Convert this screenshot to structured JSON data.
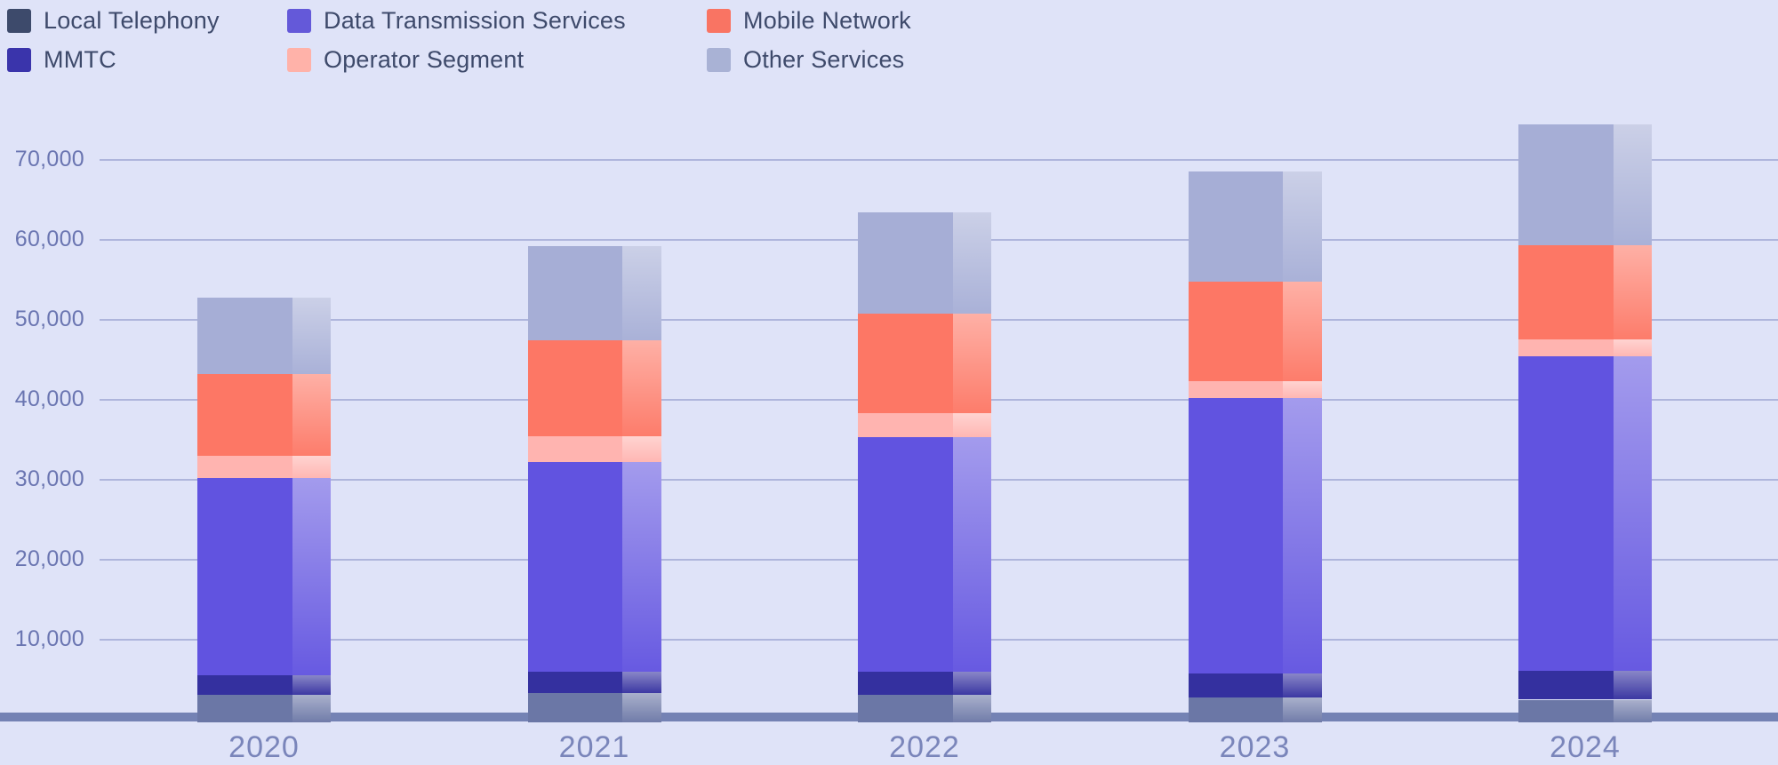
{
  "legend": {
    "order": [
      "Local Telephony",
      "Data Transmission Services",
      "Mobile Network",
      "MMTC",
      "Operator Segment",
      "Other Services"
    ],
    "swatch_colors": {
      "Local Telephony": "#3d4a6b",
      "Data Transmission Services": "#6459d9",
      "Mobile Network": "#f97463",
      "MMTC": "#3a34ab",
      "Operator Segment": "#ffb2a9",
      "Other Services": "#a9b2d5"
    }
  },
  "chart_data": {
    "type": "bar",
    "stacked": true,
    "categories": [
      "2020",
      "2021",
      "2022",
      "2023",
      "2024"
    ],
    "series": [
      {
        "name": "Local Telephony",
        "color": "#6b77a6",
        "values": [
          3100,
          3300,
          3100,
          2800,
          2500
        ]
      },
      {
        "name": "MMTC",
        "color": "#34309f",
        "values": [
          2500,
          2700,
          2900,
          3000,
          3600
        ]
      },
      {
        "name": "Data Transmission Services",
        "color": "#6153e0",
        "values": [
          24600,
          26200,
          29300,
          34400,
          39300
        ]
      },
      {
        "name": "Operator Segment",
        "color": "#ffb4b0",
        "values": [
          2800,
          3200,
          3000,
          2100,
          2200
        ]
      },
      {
        "name": "Mobile Network",
        "color": "#fd7765",
        "values": [
          10200,
          12000,
          12500,
          12500,
          11700
        ]
      },
      {
        "name": "Other Services",
        "color": "#a6aed6",
        "values": [
          9600,
          11800,
          12600,
          13800,
          15100
        ]
      }
    ],
    "totals": [
      52800,
      59200,
      63400,
      68600,
      74400
    ],
    "title": "",
    "xlabel": "",
    "ylabel": "",
    "y_ticks": [
      70000,
      60000,
      50000,
      40000,
      30000,
      20000,
      10000
    ],
    "y_tick_labels": [
      "70,000",
      "60,000",
      "50,000",
      "40,000",
      "30,000",
      "20,000",
      "10,000"
    ],
    "ylim": [
      0,
      78000
    ],
    "grid": true,
    "legend_position": "top-left"
  },
  "colors": {
    "background": "#dfe3f8",
    "gridline": "#aeb5dc",
    "axis_band": "#7482b4",
    "ytick_text": "#6a75b1",
    "xlabel_text": "#7a85ba",
    "legend_text": "#3e4a6b"
  }
}
